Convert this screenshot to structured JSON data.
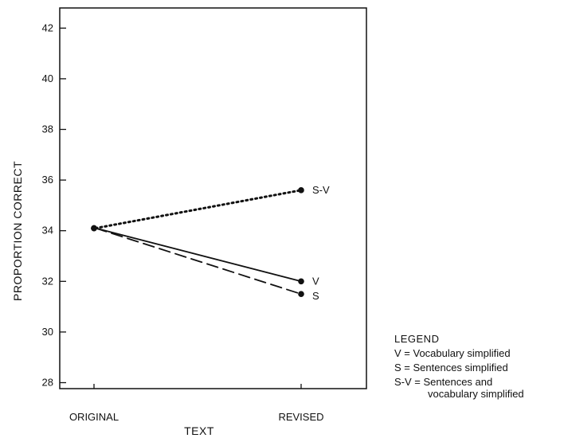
{
  "chart_data": {
    "type": "line",
    "xlabel": "TEXT",
    "ylabel": "PROPORTION CORRECT",
    "categories": [
      "ORIGINAL",
      "REVISED"
    ],
    "ylim": [
      27,
      43
    ],
    "yticks": [
      "28",
      "30",
      "32",
      "34",
      "36",
      "38",
      "40",
      "42"
    ],
    "grid": false,
    "legend_position": "bottom-right",
    "series": [
      {
        "name": "S-V",
        "values": [
          34.1,
          35.6
        ],
        "style": "dotted"
      },
      {
        "name": "V",
        "values": [
          34.1,
          32.0
        ],
        "style": "solid"
      },
      {
        "name": "S",
        "values": [
          34.1,
          31.5
        ],
        "style": "dashed"
      }
    ],
    "legend": {
      "title": "LEGEND",
      "entries": [
        {
          "key": "V",
          "text": "V = Vocabulary simplified"
        },
        {
          "key": "S",
          "text": "S = Sentences simplified"
        },
        {
          "key": "S-V",
          "text": "S-V = Sentences and",
          "continuation": "vocabulary simplified"
        }
      ]
    },
    "colors": {
      "line": "#111111",
      "background": "#ffffff"
    }
  }
}
